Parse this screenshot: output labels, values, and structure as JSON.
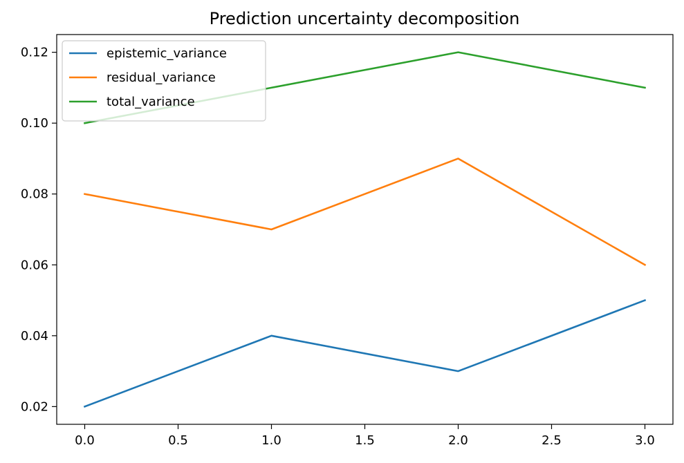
{
  "chart_data": {
    "type": "line",
    "title": "Prediction uncertainty decomposition",
    "xlabel": "",
    "ylabel": "",
    "x": [
      0,
      1,
      2,
      3
    ],
    "xlim": [
      -0.15,
      3.15
    ],
    "ylim": [
      0.015,
      0.125
    ],
    "xticks": [
      0.0,
      0.5,
      1.0,
      1.5,
      2.0,
      2.5,
      3.0
    ],
    "xtick_labels": [
      "0.0",
      "0.5",
      "1.0",
      "1.5",
      "2.0",
      "2.5",
      "3.0"
    ],
    "yticks": [
      0.02,
      0.04,
      0.06,
      0.08,
      0.1,
      0.12
    ],
    "ytick_labels": [
      "0.02",
      "0.04",
      "0.06",
      "0.08",
      "0.10",
      "0.12"
    ],
    "grid": false,
    "legend_position": "upper left",
    "series": [
      {
        "name": "epistemic_variance",
        "color": "#1f77b4",
        "values": [
          0.02,
          0.04,
          0.03,
          0.05
        ]
      },
      {
        "name": "residual_variance",
        "color": "#ff7f0e",
        "values": [
          0.08,
          0.07,
          0.09,
          0.06
        ]
      },
      {
        "name": "total_variance",
        "color": "#2ca02c",
        "values": [
          0.1,
          0.11,
          0.12,
          0.11
        ]
      }
    ]
  }
}
